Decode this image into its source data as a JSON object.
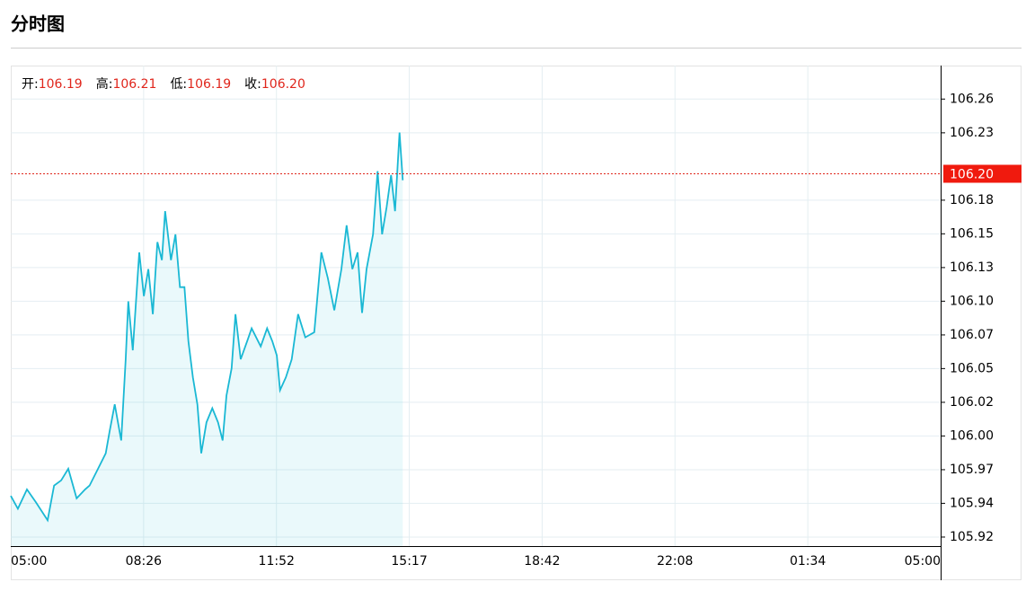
{
  "chart_data": {
    "type": "line",
    "title": "分时图",
    "stats": [
      {
        "label": "开:",
        "value": "106.19"
      },
      {
        "label": "高:",
        "value": "106.21"
      },
      {
        "label": "低:",
        "value": "106.19"
      },
      {
        "label": "收:",
        "value": "106.20"
      }
    ],
    "x": [
      "05:00",
      "05:11",
      "05:25",
      "05:39",
      "05:57",
      "06:07",
      "06:18",
      "06:29",
      "06:42",
      "06:55",
      "07:02",
      "07:16",
      "07:27",
      "07:33",
      "07:41",
      "07:51",
      "07:58",
      "08:02",
      "08:09",
      "08:19",
      "08:26",
      "08:33",
      "08:40",
      "08:47",
      "08:54",
      "08:59",
      "09:08",
      "09:15",
      "09:22",
      "09:29",
      "09:35",
      "09:42",
      "09:49",
      "09:55",
      "10:03",
      "10:12",
      "10:21",
      "10:28",
      "10:34",
      "10:42",
      "10:48",
      "10:56",
      "11:06",
      "11:13",
      "11:27",
      "11:37",
      "11:45",
      "11:52",
      "11:57",
      "12:06",
      "12:15",
      "12:25",
      "12:36",
      "12:50",
      "13:01",
      "13:11",
      "13:21",
      "13:32",
      "13:40",
      "13:49",
      "13:57",
      "14:04",
      "14:11",
      "14:21",
      "14:28",
      "14:35",
      "14:42",
      "14:49",
      "14:55",
      "15:02",
      "15:07"
    ],
    "values": [
      105.95,
      105.94,
      105.955,
      105.945,
      105.931,
      105.958,
      105.962,
      105.971,
      105.948,
      105.955,
      105.958,
      105.972,
      105.983,
      106.0,
      106.021,
      105.993,
      106.056,
      106.101,
      106.063,
      106.139,
      106.105,
      106.126,
      106.091,
      106.147,
      106.133,
      106.171,
      106.133,
      106.153,
      106.112,
      106.112,
      106.07,
      106.042,
      106.021,
      105.983,
      106.007,
      106.018,
      106.007,
      105.993,
      106.028,
      106.049,
      106.091,
      106.056,
      106.07,
      106.08,
      106.066,
      106.08,
      106.07,
      106.059,
      106.032,
      106.042,
      106.056,
      106.091,
      106.073,
      106.077,
      106.139,
      106.119,
      106.094,
      106.126,
      106.16,
      106.126,
      106.139,
      106.092,
      106.126,
      106.153,
      106.202,
      106.153,
      106.174,
      106.199,
      106.171,
      106.232,
      106.195
    ],
    "color": "#1ab8d4",
    "last_price": {
      "value": 106.2,
      "label": "106.20"
    },
    "ylim": [
      105.911,
      106.284
    ],
    "yticks": [
      {
        "value": 105.918,
        "label": "105.92"
      },
      {
        "value": 105.9442,
        "label": "105.94"
      },
      {
        "value": 105.9703,
        "label": "105.97"
      },
      {
        "value": 105.9965,
        "label": "106.00"
      },
      {
        "value": 106.0226,
        "label": "106.02"
      },
      {
        "value": 106.0488,
        "label": "106.05"
      },
      {
        "value": 106.0749,
        "label": "106.07"
      },
      {
        "value": 106.1011,
        "label": "106.10"
      },
      {
        "value": 106.1272,
        "label": "106.13"
      },
      {
        "value": 106.1534,
        "label": "106.15"
      },
      {
        "value": 106.1795,
        "label": "106.18"
      },
      {
        "value": 106.2318,
        "label": "106.23"
      },
      {
        "value": 106.258,
        "label": "106.26"
      }
    ],
    "xticks": [
      "05:00",
      "08:26",
      "11:52",
      "15:17",
      "18:42",
      "22:08",
      "01:34",
      "05:00"
    ],
    "grid": true
  }
}
